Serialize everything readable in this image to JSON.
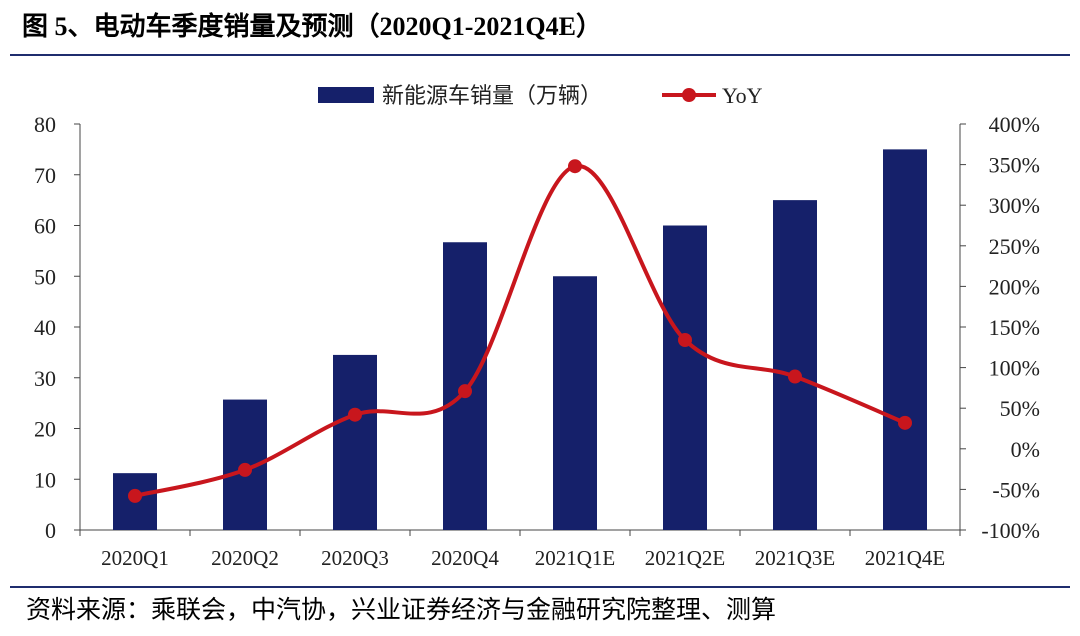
{
  "header": {
    "title": "图 5、电动车季度销量及预测（2020Q1-2021Q4E）"
  },
  "footer": {
    "source": "资料来源：乘联会，中汽协，兴业证券经济与金融研究院整理、测算"
  },
  "colors": {
    "bar": "#15206a",
    "line": "#c8161d",
    "rule": "#1f2d6e",
    "axis": "#444444"
  },
  "chart_data": {
    "type": "bar",
    "categories": [
      "2020Q1",
      "2020Q2",
      "2020Q3",
      "2020Q4",
      "2021Q1E",
      "2021Q2E",
      "2021Q3E",
      "2021Q4E"
    ],
    "series": [
      {
        "name": "新能源车销量（万辆）",
        "type": "bar",
        "axis": "left",
        "values": [
          11.2,
          25.7,
          34.5,
          56.7,
          50,
          60,
          65,
          75
        ]
      },
      {
        "name": "YoY",
        "type": "line",
        "axis": "right",
        "values": [
          -58,
          -26,
          42,
          71,
          348,
          134,
          89,
          32
        ]
      }
    ],
    "y_left": {
      "lim": [
        0,
        80
      ],
      "ticks": [
        0,
        10,
        20,
        30,
        40,
        50,
        60,
        70,
        80
      ],
      "tick_labels": [
        "0",
        "10",
        "20",
        "30",
        "40",
        "50",
        "60",
        "70",
        "80"
      ]
    },
    "y_right": {
      "lim": [
        -100,
        400
      ],
      "ticks": [
        -100,
        -50,
        0,
        50,
        100,
        150,
        200,
        250,
        300,
        350,
        400
      ],
      "tick_labels": [
        "-100%",
        "-50%",
        "0%",
        "50%",
        "100%",
        "150%",
        "200%",
        "250%",
        "300%",
        "350%",
        "400%"
      ]
    },
    "legend": {
      "position": "top-center"
    },
    "grid": false
  }
}
